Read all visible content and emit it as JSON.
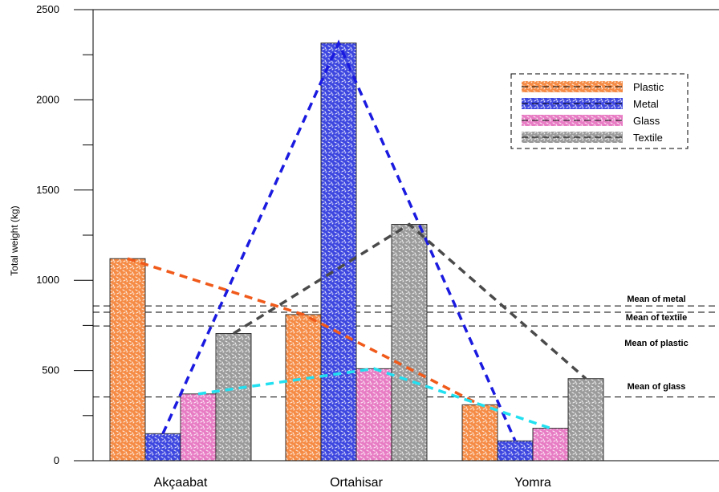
{
  "chart_data": {
    "type": "bar",
    "title": "",
    "xlabel": "",
    "ylabel": "Total weight (kg)",
    "ylim": [
      0,
      2500
    ],
    "yticks": [
      0,
      500,
      1000,
      1500,
      2000,
      2500
    ],
    "grid": false,
    "legend_position": "top-right",
    "categories": [
      "Akçaabat",
      "Ortahisar",
      "Yomra"
    ],
    "series": [
      {
        "name": "Plastic",
        "color": "#f58b45",
        "values": [
          1120,
          810,
          310
        ]
      },
      {
        "name": "Metal",
        "color": "#3d47e0",
        "values": [
          150,
          2315,
          110
        ]
      },
      {
        "name": "Glass",
        "color": "#e87cc4",
        "values": [
          370,
          510,
          180
        ]
      },
      {
        "name": "Textile",
        "color": "#9a9a9a",
        "values": [
          705,
          1310,
          455
        ]
      }
    ],
    "trend_lines": [
      {
        "series": "Plastic",
        "color": "#f05a1a"
      },
      {
        "series": "Metal",
        "color": "#1a1ae0"
      },
      {
        "series": "Glass",
        "color": "#22e0f0"
      },
      {
        "series": "Textile",
        "color": "#4a4a4a"
      }
    ],
    "mean_lines": [
      {
        "label": "Mean of metal",
        "value": 858
      },
      {
        "label": "Mean of textile",
        "value": 823
      },
      {
        "label": "Mean of plastic",
        "value": 747
      },
      {
        "label": "Mean of glass",
        "value": 353
      }
    ]
  }
}
